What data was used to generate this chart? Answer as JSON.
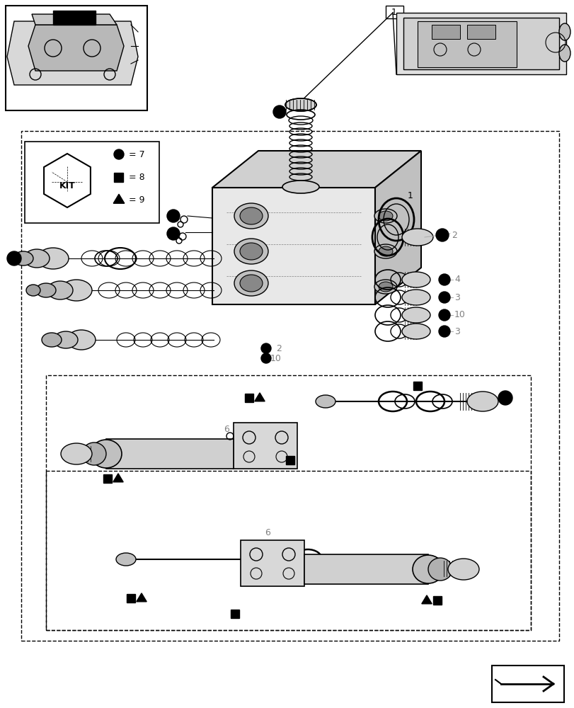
{
  "bg_color": "#ffffff",
  "line_color": "#000000",
  "gray_color": "#aaaaaa",
  "light_gray": "#cccccc",
  "fig_width": 8.12,
  "fig_height": 10.0,
  "dpi": 100
}
